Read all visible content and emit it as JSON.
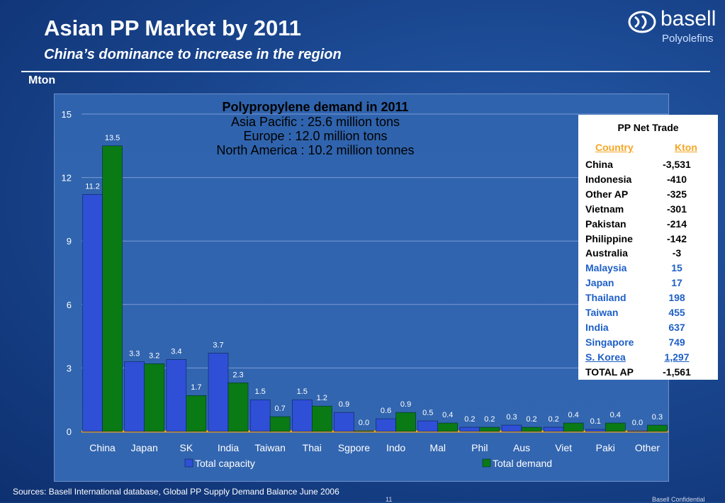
{
  "slide": {
    "title": "Asian PP Market by 2011",
    "subtitle": "China’s dominance to increase in the region",
    "unit": "Mton",
    "footer": "Sources: Basell International database, Global PP Supply Demand Balance June 2006",
    "page_number": "11",
    "confidential": "Basell Confidential"
  },
  "logo": {
    "name": "basell",
    "sub": "Polyolefins",
    "icon": "basell-logo-icon"
  },
  "colors": {
    "capacity": "#2f4fd6",
    "demand": "#0a7a14",
    "table_highlight": "#1d5fc7",
    "table_header": "#f5a623"
  },
  "chart_data": {
    "type": "bar",
    "title": "Polypropylene demand in 2011",
    "annotations": [
      "Asia Pacific : 25.6 million tons",
      "Europe : 12.0 million tons",
      "North America : 10.2 million tonnes"
    ],
    "categories": [
      "China",
      "Japan",
      "SK",
      "India",
      "Taiwan",
      "Thai",
      "Sgpore",
      "Indo",
      "Mal",
      "Phil",
      "Aus",
      "Viet",
      "Paki",
      "Other"
    ],
    "series": [
      {
        "name": "Total capacity",
        "values": [
          11.2,
          3.3,
          3.4,
          3.7,
          1.5,
          1.5,
          0.9,
          0.6,
          0.5,
          0.2,
          0.3,
          0.2,
          0.1,
          0.0
        ]
      },
      {
        "name": "Total demand",
        "values": [
          13.5,
          3.2,
          1.7,
          2.3,
          0.7,
          1.2,
          0.0,
          0.9,
          0.4,
          0.2,
          0.2,
          0.4,
          0.4,
          0.3
        ]
      }
    ],
    "ylim": [
      0,
      15
    ],
    "yticks": [
      0,
      3,
      6,
      9,
      12,
      15
    ],
    "xlabel": "",
    "ylabel": "",
    "grid": true,
    "legend": "bottom"
  },
  "net_trade": {
    "title": "PP Net Trade",
    "col_country": "Country",
    "col_kton": "Kton",
    "rows": [
      {
        "country": "China",
        "kton": "-3,531",
        "style": "normal"
      },
      {
        "country": "Indonesia",
        "kton": "-410",
        "style": "normal"
      },
      {
        "country": "Other AP",
        "kton": "-325",
        "style": "normal"
      },
      {
        "country": "Vietnam",
        "kton": "-301",
        "style": "normal"
      },
      {
        "country": "Pakistan",
        "kton": "-214",
        "style": "normal"
      },
      {
        "country": "Philippine",
        "kton": "-142",
        "style": "normal"
      },
      {
        "country": "Australia",
        "kton": "-3",
        "style": "normal"
      },
      {
        "country": "Malaysia",
        "kton": "15",
        "style": "blue"
      },
      {
        "country": "Japan",
        "kton": "17",
        "style": "blue"
      },
      {
        "country": "Thailand",
        "kton": "198",
        "style": "blue"
      },
      {
        "country": "Taiwan",
        "kton": "455",
        "style": "blue"
      },
      {
        "country": "India",
        "kton": "637",
        "style": "blue"
      },
      {
        "country": "Singapore",
        "kton": "749",
        "style": "blue"
      },
      {
        "country": "S. Korea",
        "kton": "1,297",
        "style": "blue-underline"
      },
      {
        "country": "TOTAL AP",
        "kton": "-1,561",
        "style": "normal"
      }
    ]
  }
}
